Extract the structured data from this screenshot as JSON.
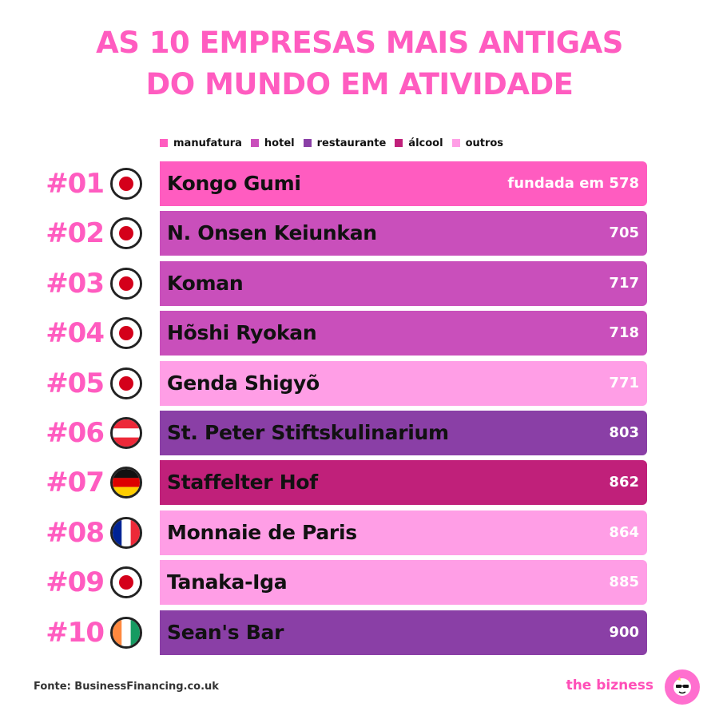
{
  "title_line1": "AS 10 EMPRESAS MAIS ANTIGAS",
  "title_line2": "DO MUNDO EM ATIVIDADE",
  "legend": [
    {
      "label": "manufatura",
      "color": "#ff5cc0"
    },
    {
      "label": "hotel",
      "color": "#c94fbb"
    },
    {
      "label": "restaurante",
      "color": "#8a3fa6"
    },
    {
      "label": "álcool",
      "color": "#c0207a"
    },
    {
      "label": "outros",
      "color": "#ff9ee6"
    }
  ],
  "rows": [
    {
      "rank": "#01",
      "name": "Kongo Gumi",
      "year": "fundada em 578",
      "country": "japan",
      "category": "manufatura",
      "color": "#ff5cc0"
    },
    {
      "rank": "#02",
      "name": "N. Onsen Keiunkan",
      "year": "705",
      "country": "japan",
      "category": "hotel",
      "color": "#c94fbb"
    },
    {
      "rank": "#03",
      "name": "Koman",
      "year": "717",
      "country": "japan",
      "category": "hotel",
      "color": "#c94fbb"
    },
    {
      "rank": "#04",
      "name": "Hõshi Ryokan",
      "year": "718",
      "country": "japan",
      "category": "hotel",
      "color": "#c94fbb"
    },
    {
      "rank": "#05",
      "name": "Genda Shigyõ",
      "year": "771",
      "country": "japan",
      "category": "outros",
      "color": "#ff9ee6"
    },
    {
      "rank": "#06",
      "name": "St. Peter Stiftskulinarium",
      "year": "803",
      "country": "austria",
      "category": "restaurante",
      "color": "#8a3fa6"
    },
    {
      "rank": "#07",
      "name": "Staffelter Hof",
      "year": "862",
      "country": "germany",
      "category": "álcool",
      "color": "#c0207a"
    },
    {
      "rank": "#08",
      "name": "Monnaie de Paris",
      "year": "864",
      "country": "france",
      "category": "outros",
      "color": "#ff9ee6"
    },
    {
      "rank": "#09",
      "name": "Tanaka-Iga",
      "year": "885",
      "country": "japan",
      "category": "outros",
      "color": "#ff9ee6"
    },
    {
      "rank": "#10",
      "name": "Sean's Bar",
      "year": "900",
      "country": "ireland",
      "category": "restaurante",
      "color": "#8a3fa6"
    }
  ],
  "source": "Fonte: BusinessFinancing.co.uk",
  "brand": "the bizness"
}
